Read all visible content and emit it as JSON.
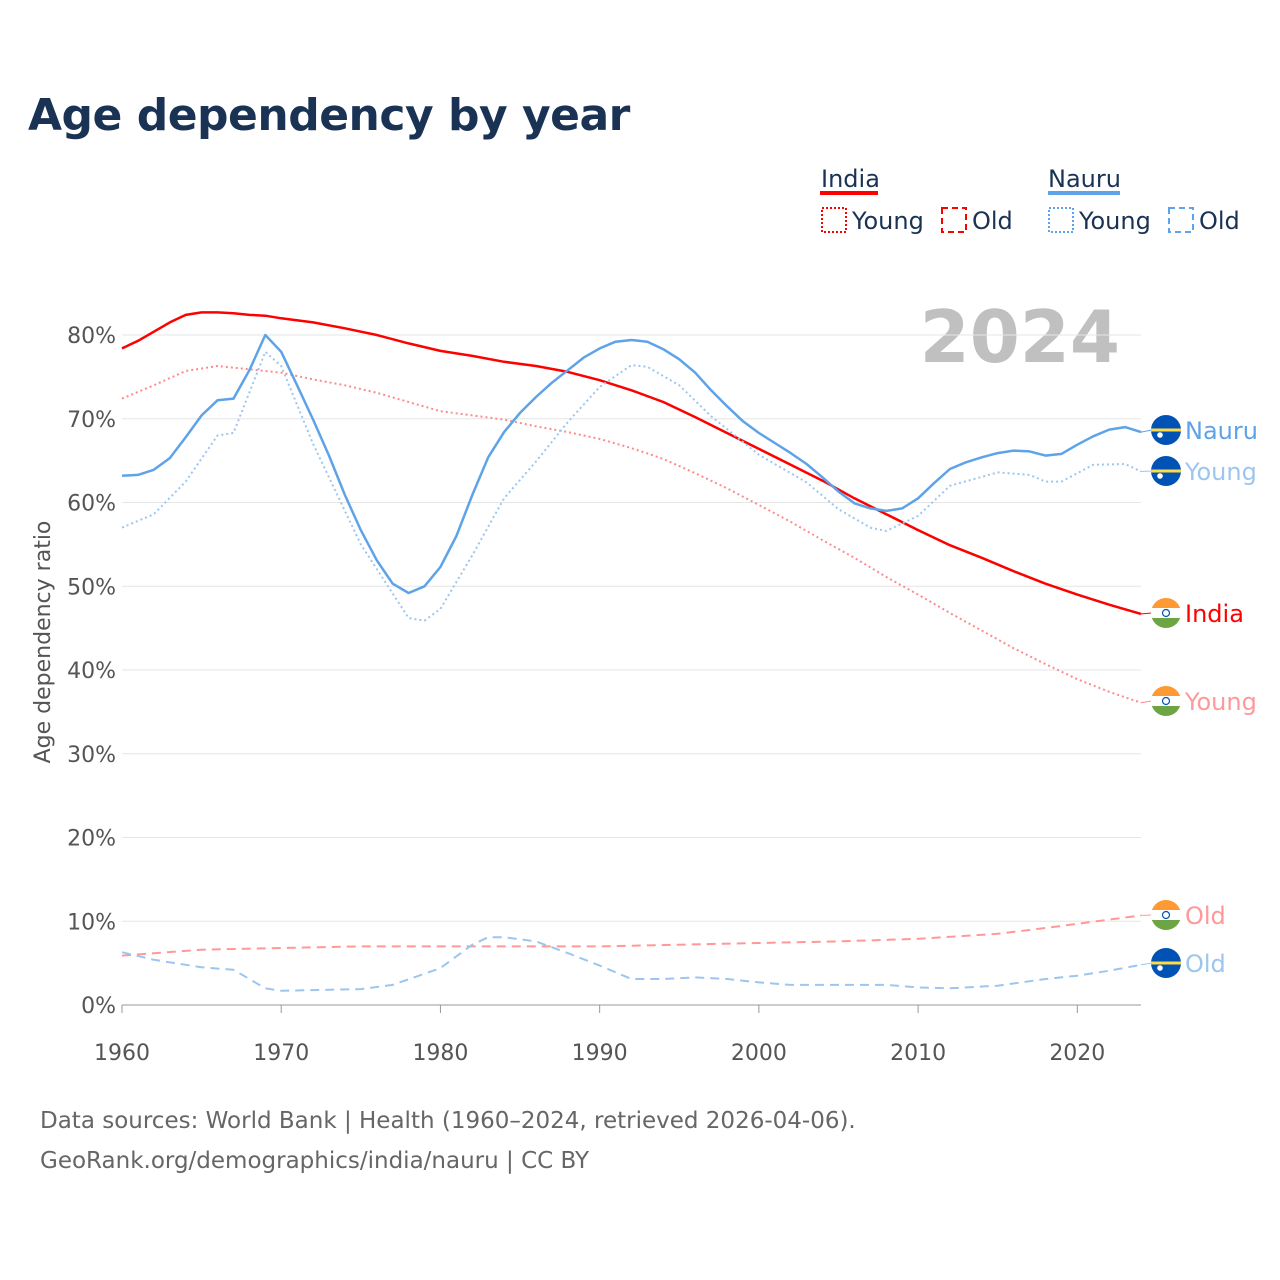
{
  "chart_data": {
    "type": "line",
    "title": "Age dependency by year",
    "ylabel": "Age dependency ratio",
    "xlabel": "",
    "xlim": [
      1960,
      2024
    ],
    "ylim": [
      0,
      80
    ],
    "yticks": [
      "0%",
      "10%",
      "20%",
      "30%",
      "40%",
      "50%",
      "60%",
      "70%",
      "80%"
    ],
    "ytick_values": [
      0,
      10,
      20,
      30,
      40,
      50,
      60,
      70,
      80
    ],
    "xticks": [
      "1960",
      "1970",
      "1980",
      "1990",
      "2000",
      "2010",
      "2020"
    ],
    "xtick_values": [
      1960,
      1970,
      1980,
      1990,
      2000,
      2010,
      2020
    ],
    "year_watermark": "2024",
    "grid": true,
    "legend": {
      "placement": "top-right",
      "groups": [
        {
          "name": "India",
          "color": "#ff0000",
          "items": [
            "Young",
            "Old"
          ]
        },
        {
          "name": "Nauru",
          "color": "#5ea3e8",
          "items": [
            "Young",
            "Old"
          ]
        }
      ]
    },
    "series": [
      {
        "name": "India",
        "end_label": "India",
        "country": "india",
        "style": "solid",
        "color": "#ff0000",
        "label_color": "#ff0000",
        "x": [
          1960,
          1961,
          1963,
          1964,
          1965,
          1966,
          1967,
          1968,
          1969,
          1970,
          1972,
          1974,
          1976,
          1978,
          1980,
          1982,
          1984,
          1986,
          1988,
          1990,
          1992,
          1994,
          1996,
          1998,
          2000,
          2002,
          2004,
          2006,
          2008,
          2010,
          2012,
          2014,
          2016,
          2018,
          2020,
          2022,
          2024
        ],
        "y": [
          78.4,
          79.3,
          81.5,
          82.4,
          82.7,
          82.7,
          82.6,
          82.4,
          82.3,
          82.0,
          81.5,
          80.8,
          80.0,
          79.0,
          78.1,
          77.5,
          76.8,
          76.3,
          75.6,
          74.6,
          73.4,
          72.0,
          70.2,
          68.3,
          66.4,
          64.5,
          62.6,
          60.5,
          58.6,
          56.7,
          54.9,
          53.4,
          51.8,
          50.3,
          49.0,
          47.8,
          46.7
        ]
      },
      {
        "name": "India Young",
        "end_label": "Young",
        "country": "india",
        "style": "dotted",
        "color": "#ff8a8a",
        "label_color": "#ff9999",
        "x": [
          1960,
          1962,
          1964,
          1966,
          1968,
          1970,
          1972,
          1974,
          1976,
          1978,
          1980,
          1982,
          1984,
          1986,
          1988,
          1990,
          1992,
          1994,
          1996,
          1998,
          2000,
          2002,
          2004,
          2006,
          2008,
          2010,
          2012,
          2014,
          2016,
          2018,
          2020,
          2022,
          2024
        ],
        "y": [
          72.4,
          74.0,
          75.7,
          76.3,
          75.9,
          75.5,
          74.7,
          74.0,
          73.1,
          72.0,
          70.9,
          70.4,
          69.9,
          69.1,
          68.4,
          67.6,
          66.5,
          65.2,
          63.5,
          61.7,
          59.7,
          57.7,
          55.5,
          53.4,
          51.1,
          49.0,
          46.8,
          44.7,
          42.6,
          40.7,
          38.9,
          37.4,
          36.1
        ]
      },
      {
        "name": "India Old",
        "end_label": "Old",
        "country": "india",
        "style": "dashed",
        "color": "#ff9999",
        "label_color": "#ff9999",
        "x": [
          1960,
          1965,
          1970,
          1975,
          1980,
          1990,
          2000,
          2005,
          2010,
          2015,
          2018,
          2020,
          2024
        ],
        "y": [
          5.9,
          6.6,
          6.8,
          7.0,
          7.0,
          7.0,
          7.4,
          7.6,
          7.9,
          8.5,
          9.2,
          9.7,
          10.7
        ]
      },
      {
        "name": "Nauru",
        "end_label": "Nauru",
        "country": "nauru",
        "style": "solid",
        "color": "#5ea3e8",
        "label_color": "#5ea3e8",
        "x": [
          1960,
          1961,
          1962,
          1963,
          1964,
          1965,
          1966,
          1967,
          1968,
          1969,
          1970,
          1971,
          1972,
          1973,
          1974,
          1975,
          1976,
          1977,
          1978,
          1979,
          1980,
          1981,
          1982,
          1983,
          1984,
          1985,
          1986,
          1987,
          1988,
          1989,
          1990,
          1991,
          1992,
          1993,
          1994,
          1995,
          1996,
          1997,
          1998,
          1999,
          2000,
          2001,
          2002,
          2003,
          2004,
          2005,
          2006,
          2007,
          2008,
          2009,
          2010,
          2011,
          2012,
          2013,
          2014,
          2015,
          2016,
          2017,
          2018,
          2019,
          2020,
          2021,
          2022,
          2023,
          2024
        ],
        "y": [
          63.2,
          63.3,
          63.9,
          65.3,
          67.8,
          70.4,
          72.2,
          72.4,
          75.8,
          80.0,
          78.0,
          74.0,
          69.9,
          65.6,
          60.9,
          56.7,
          53.1,
          50.3,
          49.2,
          50.0,
          52.3,
          56.0,
          60.9,
          65.4,
          68.4,
          70.7,
          72.6,
          74.3,
          75.8,
          77.3,
          78.4,
          79.2,
          79.4,
          79.2,
          78.3,
          77.1,
          75.5,
          73.4,
          71.5,
          69.7,
          68.3,
          67.1,
          65.9,
          64.6,
          63.0,
          61.3,
          59.9,
          59.3,
          59.0,
          59.3,
          60.5,
          62.3,
          64.0,
          64.8,
          65.4,
          65.9,
          66.2,
          66.1,
          65.6,
          65.8,
          66.9,
          67.9,
          68.7,
          69.0,
          68.4
        ]
      },
      {
        "name": "Nauru Young",
        "end_label": "Young",
        "country": "nauru",
        "style": "dotted",
        "color": "#9cc6f0",
        "label_color": "#9cc6f0",
        "x": [
          1960,
          1962,
          1964,
          1966,
          1967,
          1969,
          1970,
          1972,
          1975,
          1978,
          1979,
          1980,
          1982,
          1984,
          1986,
          1988,
          1990,
          1992,
          1993,
          1995,
          1997,
          2000,
          2003,
          2005,
          2007,
          2008,
          2010,
          2012,
          2015,
          2017,
          2018,
          2019,
          2021,
          2023,
          2024
        ],
        "y": [
          57.0,
          58.6,
          62.5,
          68.0,
          68.3,
          78.0,
          76.3,
          67.0,
          55.0,
          46.2,
          45.9,
          47.3,
          53.7,
          60.5,
          64.9,
          69.6,
          73.8,
          76.4,
          76.2,
          74.0,
          70.3,
          65.7,
          62.4,
          59.2,
          57.0,
          56.6,
          58.4,
          62.0,
          63.6,
          63.3,
          62.5,
          62.5,
          64.5,
          64.6,
          63.7
        ]
      },
      {
        "name": "Nauru Old",
        "end_label": "Old",
        "country": "nauru",
        "style": "dashed",
        "color": "#9cc6f0",
        "label_color": "#9cc6f0",
        "x": [
          1960,
          1962,
          1965,
          1967,
          1969,
          1970,
          1975,
          1977,
          1980,
          1982,
          1983,
          1984,
          1986,
          1988,
          1990,
          1992,
          1994,
          1996,
          1998,
          2000,
          2002,
          2005,
          2008,
          2010,
          2012,
          2015,
          2018,
          2020,
          2022,
          2024
        ],
        "y": [
          6.3,
          5.4,
          4.5,
          4.2,
          2.0,
          1.7,
          1.9,
          2.4,
          4.4,
          7.2,
          8.1,
          8.1,
          7.6,
          6.2,
          4.7,
          3.1,
          3.1,
          3.3,
          3.1,
          2.7,
          2.4,
          2.4,
          2.4,
          2.1,
          2.0,
          2.3,
          3.1,
          3.5,
          4.1,
          4.8
        ]
      }
    ]
  },
  "footer": {
    "line1": "Data sources: World Bank | Health (1960–2024, retrieved 2026-04-06).",
    "line2": "GeoRank.org/demographics/india/nauru | CC BY"
  }
}
